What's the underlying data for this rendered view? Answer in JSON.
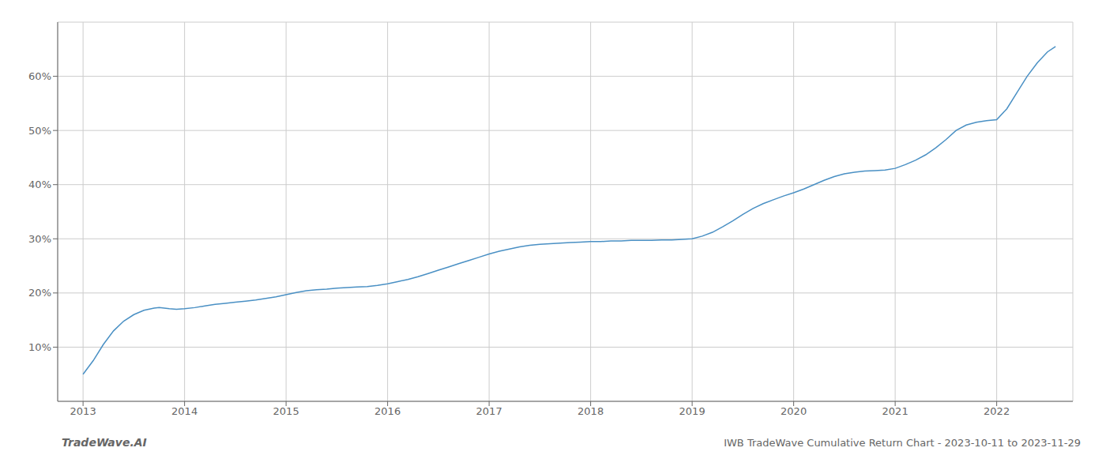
{
  "chart_data": {
    "type": "line",
    "title": "IWB TradeWave Cumulative Return Chart - 2023-10-11 to 2023-11-29",
    "annotations": [
      "TradeWave.AI"
    ],
    "color": "#4a90c4",
    "grid": true,
    "x": [
      2013.0,
      2013.1,
      2013.2,
      2013.3,
      2013.4,
      2013.5,
      2013.6,
      2013.7,
      2013.75,
      2013.85,
      2013.92,
      2014.0,
      2014.1,
      2014.2,
      2014.3,
      2014.4,
      2014.5,
      2014.6,
      2014.7,
      2014.8,
      2014.9,
      2015.0,
      2015.1,
      2015.2,
      2015.3,
      2015.4,
      2015.5,
      2015.6,
      2015.7,
      2015.8,
      2015.9,
      2016.0,
      2016.1,
      2016.2,
      2016.3,
      2016.4,
      2016.5,
      2016.6,
      2016.7,
      2016.8,
      2016.9,
      2017.0,
      2017.1,
      2017.2,
      2017.3,
      2017.4,
      2017.5,
      2017.6,
      2017.7,
      2017.8,
      2017.9,
      2018.0,
      2018.1,
      2018.2,
      2018.3,
      2018.4,
      2018.5,
      2018.6,
      2018.7,
      2018.8,
      2018.9,
      2019.0,
      2019.1,
      2019.2,
      2019.3,
      2019.4,
      2019.5,
      2019.6,
      2019.7,
      2019.8,
      2019.9,
      2020.0,
      2020.1,
      2020.2,
      2020.3,
      2020.4,
      2020.5,
      2020.6,
      2020.7,
      2020.8,
      2020.9,
      2021.0,
      2021.1,
      2021.2,
      2021.3,
      2021.4,
      2021.5,
      2021.6,
      2021.7,
      2021.8,
      2021.9,
      2022.0,
      2022.1,
      2022.2,
      2022.3,
      2022.4,
      2022.5,
      2022.58
    ],
    "values": [
      5.0,
      7.5,
      10.5,
      13.0,
      14.8,
      16.0,
      16.8,
      17.2,
      17.3,
      17.1,
      17.0,
      17.1,
      17.3,
      17.6,
      17.9,
      18.1,
      18.3,
      18.5,
      18.7,
      19.0,
      19.3,
      19.7,
      20.1,
      20.4,
      20.6,
      20.7,
      20.9,
      21.0,
      21.1,
      21.2,
      21.4,
      21.7,
      22.1,
      22.5,
      23.0,
      23.6,
      24.2,
      24.8,
      25.4,
      26.0,
      26.6,
      27.2,
      27.7,
      28.1,
      28.5,
      28.8,
      29.0,
      29.1,
      29.2,
      29.3,
      29.4,
      29.5,
      29.5,
      29.6,
      29.6,
      29.7,
      29.7,
      29.7,
      29.8,
      29.8,
      29.9,
      30.0,
      30.5,
      31.2,
      32.2,
      33.3,
      34.5,
      35.6,
      36.5,
      37.2,
      37.9,
      38.5,
      39.2,
      40.0,
      40.8,
      41.5,
      42.0,
      42.3,
      42.5,
      42.6,
      42.7,
      43.0,
      43.7,
      44.5,
      45.5,
      46.8,
      48.3,
      50.0,
      51.0,
      51.5,
      51.8,
      52.0,
      54.0,
      57.0,
      60.0,
      62.5,
      64.5,
      65.5
    ],
    "xlim": [
      2012.75,
      2022.75
    ],
    "xticks": [
      2013,
      2014,
      2015,
      2016,
      2017,
      2018,
      2019,
      2020,
      2021,
      2022
    ],
    "ylim": [
      0,
      70
    ],
    "yticks": [
      {
        "value": 10,
        "label": "10%"
      },
      {
        "value": 20,
        "label": "20%"
      },
      {
        "value": 30,
        "label": "30%"
      },
      {
        "value": 40,
        "label": "40%"
      },
      {
        "value": 50,
        "label": "50%"
      },
      {
        "value": 60,
        "label": "60%"
      }
    ]
  }
}
